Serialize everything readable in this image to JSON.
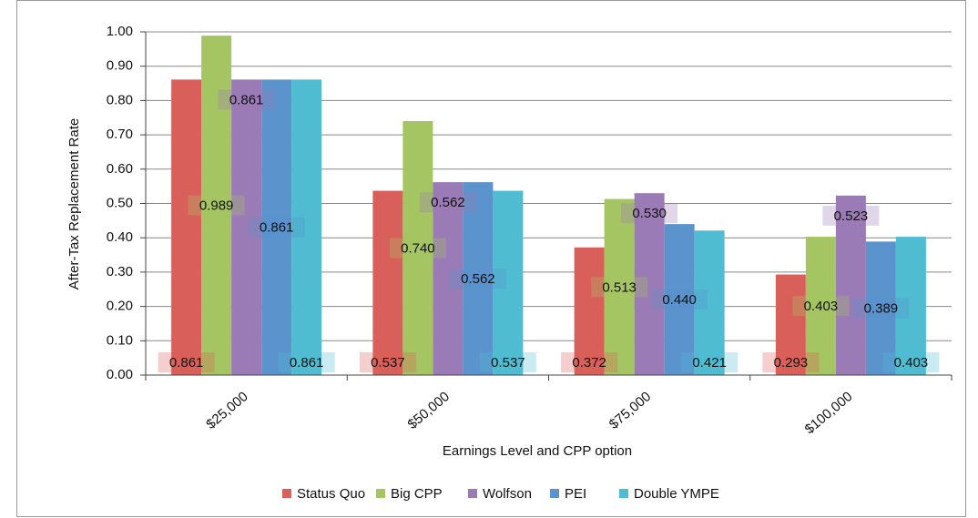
{
  "chart_data": {
    "type": "bar",
    "x_label": "Earnings Level and CPP option",
    "y_label": "After-Tax Replacement Rate",
    "categories": [
      "$25,000",
      "$50,000",
      "$75,000",
      "$100,000"
    ],
    "series": [
      {
        "name": "Status Quo",
        "color": "#d9605a",
        "values": [
          0.861,
          0.537,
          0.372,
          0.293
        ],
        "value_labels": [
          "0.861",
          "0.537",
          "0.372",
          "0.293"
        ]
      },
      {
        "name": "Big CPP",
        "color": "#a5c562",
        "values": [
          0.989,
          0.74,
          0.513,
          0.403
        ],
        "value_labels": [
          "0.989",
          "0.740",
          "0.513",
          "0.403"
        ]
      },
      {
        "name": "Wolfson",
        "color": "#9a7bb5",
        "values": [
          0.861,
          0.562,
          0.53,
          0.523
        ],
        "value_labels": [
          "0.861",
          "0.562",
          "0.530",
          "0.523"
        ]
      },
      {
        "name": "PEI",
        "color": "#5b93cd",
        "values": [
          0.861,
          0.562,
          0.44,
          0.389
        ],
        "value_labels": [
          "0.861",
          "0.562",
          "0.440",
          "0.389"
        ]
      },
      {
        "name": "Double YMPE",
        "color": "#4fbcd1",
        "values": [
          0.861,
          0.537,
          0.421,
          0.403
        ],
        "value_labels": [
          "0.861",
          "0.537",
          "0.421",
          "0.403"
        ]
      }
    ],
    "ylim": [
      0,
      1
    ],
    "yticks": [
      {
        "value": 0,
        "label": "0.00"
      },
      {
        "value": 0.1,
        "label": "0.10"
      },
      {
        "value": 0.2,
        "label": "0.20"
      },
      {
        "value": 0.3,
        "label": "0.30"
      },
      {
        "value": 0.4,
        "label": "0.40"
      },
      {
        "value": 0.5,
        "label": "0.50"
      },
      {
        "value": 0.6,
        "label": "0.60"
      },
      {
        "value": 0.7,
        "label": "0.70"
      },
      {
        "value": 0.8,
        "label": "0.80"
      },
      {
        "value": 0.9,
        "label": "0.90"
      },
      {
        "value": 1,
        "label": "1.00"
      }
    ],
    "grid": true,
    "legend": "bottom"
  }
}
